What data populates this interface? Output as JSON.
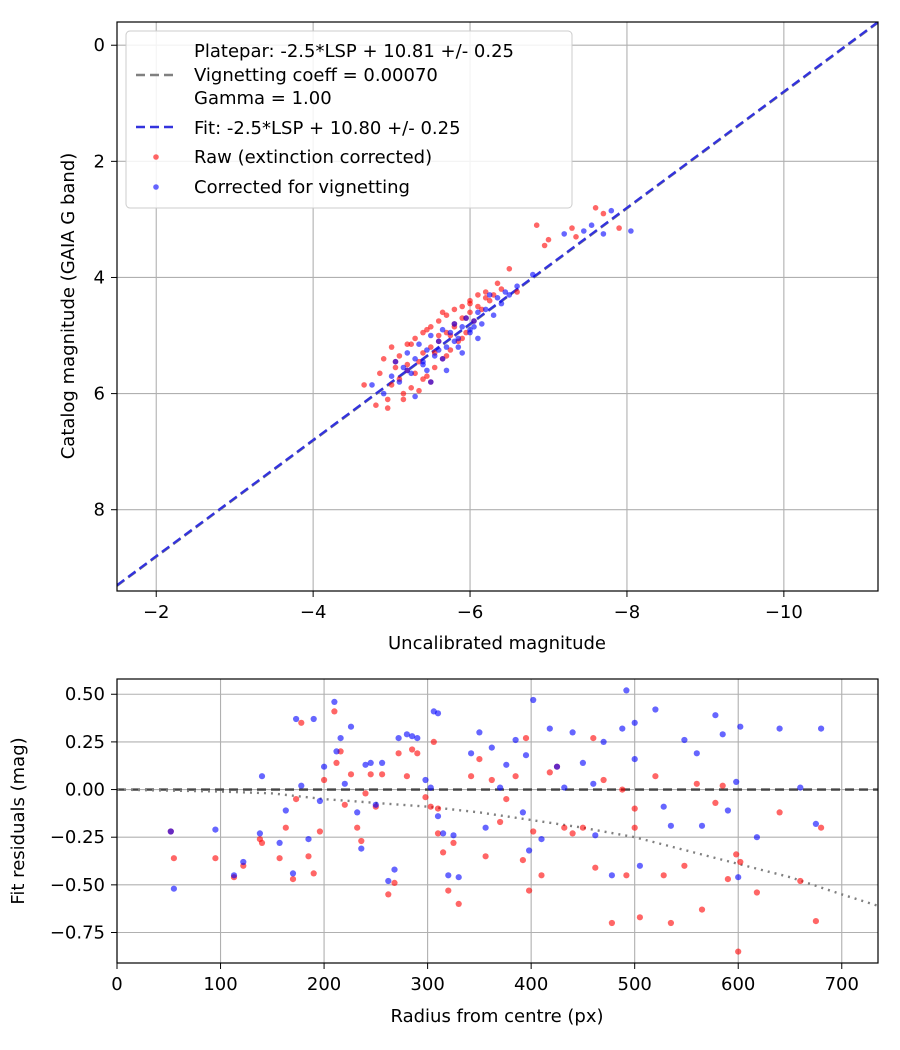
{
  "chart_data": [
    {
      "type": "scatter",
      "xlabel": "Uncalibrated magnitude",
      "ylabel": "Catalog magnitude (GAIA G band)",
      "xlim": [
        -1.5,
        -11.2
      ],
      "ylim": [
        9.4,
        -0.4
      ],
      "x_inverted": true,
      "y_inverted": true,
      "grid": true,
      "legend_placement": "top-left",
      "x_ticks": [
        -2,
        -4,
        -6,
        -8,
        -10
      ],
      "x_tick_labels": [
        "−2",
        "−4",
        "−6",
        "−8",
        "−10"
      ],
      "y_ticks": [
        0,
        2,
        4,
        6,
        8
      ],
      "y_tick_labels": [
        "0",
        "2",
        "4",
        "6",
        "8"
      ],
      "legend": [
        {
          "label": "Platepar: -2.5*LSP + 10.81 +/- 0.25",
          "style": "none"
        },
        {
          "label": "Vignetting coeff = 0.00070",
          "style": "dashed",
          "color": "#808080"
        },
        {
          "label": "Gamma = 1.00",
          "style": "none"
        },
        {
          "label": "Fit: -2.5*LSP + 10.80 +/- 0.25",
          "style": "dashed",
          "color": "#3333dd"
        },
        {
          "label": "Raw (extinction corrected)",
          "style": "marker",
          "color": "#ff0000"
        },
        {
          "label": "Corrected for vignetting",
          "style": "marker",
          "color": "#0000ff"
        }
      ],
      "lines": [
        {
          "name": "Platepar: -2.5*LSP + 10.81 +/- 0.25",
          "color": "#808080",
          "style": "dashed",
          "x": [
            -1.5,
            -11.2
          ],
          "y": [
            9.31,
            -0.39
          ]
        },
        {
          "name": "Fit: -2.5*LSP + 10.80 +/- 0.25",
          "color": "#3333dd",
          "style": "dashed",
          "x": [
            -1.5,
            -11.2
          ],
          "y": [
            9.3,
            -0.4
          ]
        }
      ],
      "series": [
        {
          "name": "Raw (extinction corrected)",
          "color": "#ff0000",
          "x": [
            -4.65,
            -4.8,
            -4.85,
            -4.9,
            -4.95,
            -5.0,
            -5.0,
            -5.05,
            -5.1,
            -5.1,
            -5.15,
            -5.2,
            -5.2,
            -5.25,
            -5.3,
            -5.3,
            -5.35,
            -5.4,
            -5.4,
            -5.45,
            -5.5,
            -5.5,
            -5.55,
            -5.6,
            -5.6,
            -5.65,
            -5.7,
            -5.7,
            -5.75,
            -5.8,
            -5.8,
            -5.85,
            -5.9,
            -5.9,
            -5.95,
            -6.0,
            -6.0,
            -6.05,
            -6.1,
            -6.1,
            -6.15,
            -6.2,
            -6.25,
            -6.3,
            -6.35,
            -6.4,
            -6.5,
            -6.6,
            -6.85,
            -6.95,
            -7.0,
            -7.3,
            -7.35,
            -7.6,
            -7.7,
            -7.9,
            -5.2,
            -5.4,
            -5.6,
            -5.8,
            -6.0,
            -5.15,
            -5.35,
            -5.55,
            -5.75,
            -5.95,
            -5.05,
            -5.25,
            -5.45,
            -5.65,
            -4.95,
            -5.5,
            -5.7,
            -5.9,
            -6.2
          ],
          "y": [
            5.85,
            6.2,
            5.65,
            5.4,
            6.1,
            5.85,
            5.2,
            5.55,
            5.75,
            5.35,
            6.0,
            5.5,
            5.15,
            5.9,
            5.65,
            5.05,
            5.45,
            5.3,
            4.95,
            5.7,
            5.2,
            4.85,
            5.55,
            5.1,
            4.75,
            5.4,
            4.95,
            4.65,
            5.25,
            4.85,
            4.55,
            5.1,
            4.7,
            4.5,
            4.95,
            4.6,
            4.4,
            4.75,
            4.5,
            4.3,
            4.55,
            4.25,
            4.4,
            4.3,
            4.1,
            4.2,
            3.85,
            4.25,
            3.1,
            3.45,
            3.35,
            3.15,
            3.3,
            2.8,
            2.9,
            3.15,
            5.6,
            5.75,
            5.0,
            4.8,
            4.45,
            6.1,
            5.95,
            5.3,
            5.0,
            4.7,
            5.45,
            5.15,
            4.9,
            4.6,
            6.25,
            5.8,
            5.35,
            5.05,
            4.35
          ]
        },
        {
          "name": "Corrected for vignetting",
          "color": "#0000ff",
          "x": [
            -4.75,
            -4.9,
            -5.0,
            -5.05,
            -5.1,
            -5.15,
            -5.2,
            -5.25,
            -5.3,
            -5.35,
            -5.4,
            -5.45,
            -5.5,
            -5.55,
            -5.6,
            -5.65,
            -5.7,
            -5.75,
            -5.8,
            -5.85,
            -5.9,
            -5.95,
            -6.0,
            -6.05,
            -6.1,
            -6.15,
            -6.2,
            -6.3,
            -6.4,
            -6.5,
            -6.6,
            -6.8,
            -7.2,
            -7.45,
            -7.55,
            -7.7,
            -7.8,
            -8.05,
            -5.3,
            -5.5,
            -5.7,
            -5.9,
            -6.1,
            -5.2,
            -5.4,
            -5.6,
            -5.8,
            -6.0,
            -6.25,
            -6.45,
            -5.45,
            -5.65,
            -5.85,
            -6.05,
            -6.35
          ],
          "y": [
            5.85,
            6.0,
            5.7,
            5.45,
            5.8,
            5.55,
            5.3,
            5.65,
            5.4,
            5.15,
            5.5,
            5.25,
            5.0,
            5.35,
            5.1,
            4.9,
            5.2,
            4.95,
            4.8,
            5.05,
            4.85,
            4.7,
            4.95,
            4.75,
            4.6,
            4.8,
            4.55,
            4.65,
            4.45,
            4.3,
            4.15,
            3.95,
            3.25,
            3.2,
            3.1,
            3.25,
            2.85,
            3.2,
            6.05,
            5.8,
            5.6,
            5.3,
            5.05,
            5.6,
            5.45,
            5.25,
            5.1,
            4.9,
            4.3,
            4.25,
            5.6,
            5.4,
            5.2,
            4.85,
            4.35
          ]
        }
      ]
    },
    {
      "type": "scatter",
      "xlabel": "Radius from centre (px)",
      "ylabel": "Fit residuals (mag)",
      "xlim": [
        0,
        735
      ],
      "ylim": [
        -0.91,
        0.58
      ],
      "grid": true,
      "x_ticks": [
        0,
        100,
        200,
        300,
        400,
        500,
        600,
        700
      ],
      "x_tick_labels": [
        "0",
        "100",
        "200",
        "300",
        "400",
        "500",
        "600",
        "700"
      ],
      "y_ticks": [
        0.5,
        0.25,
        0.0,
        -0.25,
        -0.5,
        -0.75
      ],
      "y_tick_labels": [
        "0.50",
        "0.25",
        "0.00",
        "−0.25",
        "−0.50",
        "−0.75"
      ],
      "lines": [
        {
          "name": "zero-line",
          "color": "#444444",
          "style": "dashed",
          "x": [
            0,
            735
          ],
          "y": [
            0,
            0
          ]
        },
        {
          "name": "vignetting-curve",
          "color": "#808080",
          "style": "dotted",
          "x": [
            0,
            100,
            150,
            200,
            250,
            300,
            350,
            400,
            450,
            500,
            550,
            600,
            650,
            700,
            735
          ],
          "y": [
            0.0,
            -0.01,
            -0.02,
            -0.05,
            -0.07,
            -0.09,
            -0.12,
            -0.16,
            -0.2,
            -0.25,
            -0.32,
            -0.39,
            -0.46,
            -0.55,
            -0.61
          ]
        }
      ],
      "series": [
        {
          "name": "Raw (extinction corrected)",
          "color": "#ff0000",
          "x": [
            52,
            55,
            95,
            113,
            122,
            138,
            140,
            157,
            163,
            170,
            173,
            178,
            185,
            190,
            196,
            200,
            210,
            212,
            216,
            220,
            226,
            232,
            236,
            245,
            250,
            256,
            262,
            268,
            272,
            280,
            285,
            290,
            298,
            303,
            306,
            310,
            315,
            320,
            325,
            330,
            342,
            350,
            356,
            362,
            370,
            376,
            385,
            392,
            398,
            402,
            410,
            418,
            425,
            432,
            440,
            450,
            462,
            470,
            478,
            488,
            492,
            500,
            505,
            520,
            528,
            535,
            548,
            565,
            578,
            585,
            590,
            598,
            600,
            602,
            618,
            640,
            660,
            675,
            680,
            500,
            560,
            460,
            395,
            310,
            240
          ],
          "y": [
            -0.22,
            -0.36,
            -0.36,
            -0.46,
            -0.4,
            -0.26,
            -0.28,
            -0.36,
            -0.2,
            -0.47,
            -0.05,
            0.35,
            -0.35,
            -0.44,
            -0.22,
            0.05,
            0.41,
            0.14,
            0.2,
            -0.08,
            0.08,
            -0.2,
            -0.27,
            0.08,
            -0.09,
            0.08,
            -0.55,
            -0.49,
            0.19,
            0.07,
            0.21,
            0.19,
            -0.04,
            -0.09,
            0.25,
            -0.23,
            -0.33,
            -0.53,
            -0.28,
            -0.6,
            0.07,
            0.16,
            -0.35,
            0.05,
            -0.17,
            -0.05,
            0.07,
            -0.37,
            -0.53,
            -0.22,
            -0.45,
            0.09,
            0.12,
            -0.2,
            -0.23,
            -0.2,
            -0.41,
            0.05,
            -0.7,
            0.0,
            -0.45,
            -0.1,
            -0.67,
            0.07,
            -0.45,
            -0.7,
            -0.4,
            -0.63,
            -0.07,
            0.02,
            -0.47,
            -0.34,
            -0.85,
            -0.38,
            -0.54,
            -0.12,
            -0.48,
            -0.69,
            -0.2,
            -0.2,
            0.03,
            0.27,
            0.27,
            -0.1,
            -0.02
          ]
        },
        {
          "name": "Corrected for vignetting",
          "color": "#0000ff",
          "x": [
            52,
            55,
            95,
            113,
            122,
            138,
            140,
            157,
            163,
            170,
            173,
            178,
            185,
            190,
            196,
            200,
            210,
            212,
            216,
            220,
            226,
            232,
            236,
            245,
            250,
            256,
            262,
            268,
            272,
            280,
            285,
            290,
            298,
            303,
            306,
            310,
            315,
            320,
            325,
            330,
            342,
            350,
            356,
            362,
            370,
            376,
            385,
            392,
            398,
            402,
            410,
            418,
            425,
            432,
            440,
            450,
            462,
            470,
            478,
            488,
            492,
            500,
            505,
            520,
            528,
            535,
            548,
            565,
            578,
            585,
            590,
            598,
            600,
            602,
            618,
            640,
            660,
            675,
            680,
            500,
            560,
            460,
            395,
            310,
            240
          ],
          "y": [
            -0.22,
            -0.52,
            -0.21,
            -0.45,
            -0.38,
            -0.23,
            0.07,
            -0.28,
            -0.11,
            -0.44,
            0.37,
            0.02,
            -0.26,
            0.37,
            -0.06,
            0.12,
            0.46,
            0.2,
            0.27,
            0.03,
            0.33,
            -0.12,
            -0.31,
            0.14,
            -0.08,
            0.14,
            -0.48,
            -0.42,
            0.27,
            0.29,
            0.28,
            0.27,
            0.05,
            0.01,
            0.41,
            -0.14,
            -0.23,
            -0.45,
            -0.24,
            -0.46,
            0.19,
            0.3,
            -0.2,
            0.22,
            0.01,
            0.13,
            0.26,
            -0.12,
            -0.32,
            0.47,
            -0.26,
            0.32,
            0.12,
            0.01,
            0.3,
            0.14,
            -0.24,
            0.25,
            -0.45,
            0.32,
            0.52,
            0.16,
            -0.4,
            0.42,
            -0.09,
            -0.19,
            0.26,
            -0.19,
            0.39,
            0.29,
            -0.11,
            0.04,
            -0.46,
            0.33,
            -0.25,
            0.32,
            0.01,
            -0.18,
            0.32,
            0.35,
            0.19,
            0.03,
            0.18,
            0.4,
            0.13
          ]
        }
      ]
    }
  ]
}
